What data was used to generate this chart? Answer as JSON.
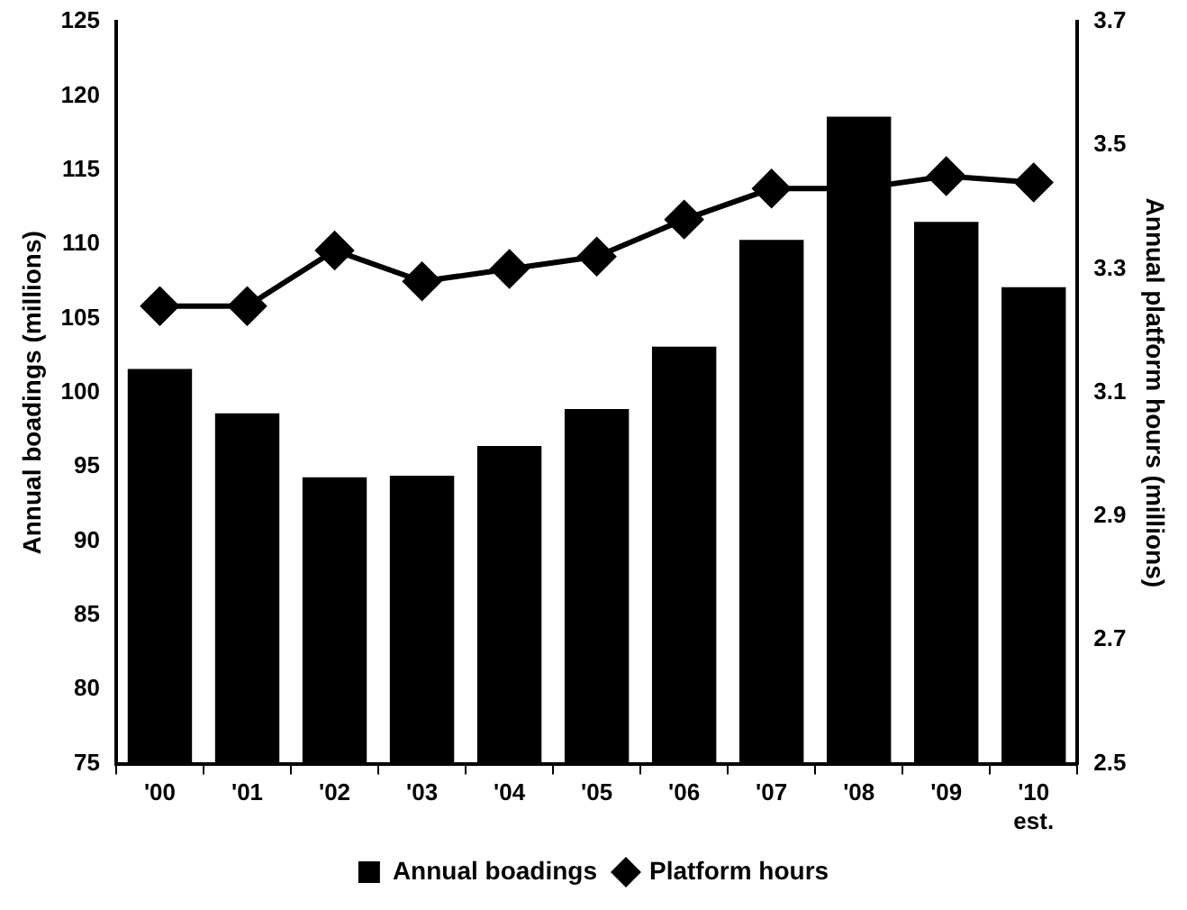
{
  "chart_data": {
    "type": "bar",
    "categories": [
      "'00",
      "'01",
      "'02",
      "'03",
      "'04",
      "'05",
      "'06",
      "'07",
      "'08",
      "'09",
      "'10\nest."
    ],
    "series": [
      {
        "name": "Annual boadings",
        "color": "#000000",
        "values": [
          101.6,
          98.6,
          94.3,
          94.4,
          96.4,
          98.9,
          103.1,
          110.3,
          118.6,
          111.5,
          107.1
        ]
      },
      {
        "name": "Platform hours",
        "type": "line",
        "axis": "y2",
        "color": "#000000",
        "marker": "diamond",
        "values": [
          3.24,
          3.24,
          3.33,
          3.28,
          3.3,
          3.32,
          3.38,
          3.43,
          3.43,
          3.45,
          3.44
        ]
      }
    ],
    "ylabel": "Annual boadings (millions)",
    "y2label": "Annual platform hours (millions)",
    "ylim": [
      75,
      125
    ],
    "yticks": [
      75,
      80,
      85,
      90,
      95,
      100,
      105,
      110,
      115,
      120,
      125
    ],
    "y2lim": [
      2.5,
      3.7
    ],
    "y2ticks": [
      2.5,
      2.7,
      2.9,
      3.1,
      3.3,
      3.5,
      3.7
    ],
    "grid": false,
    "legend": "bottom"
  }
}
